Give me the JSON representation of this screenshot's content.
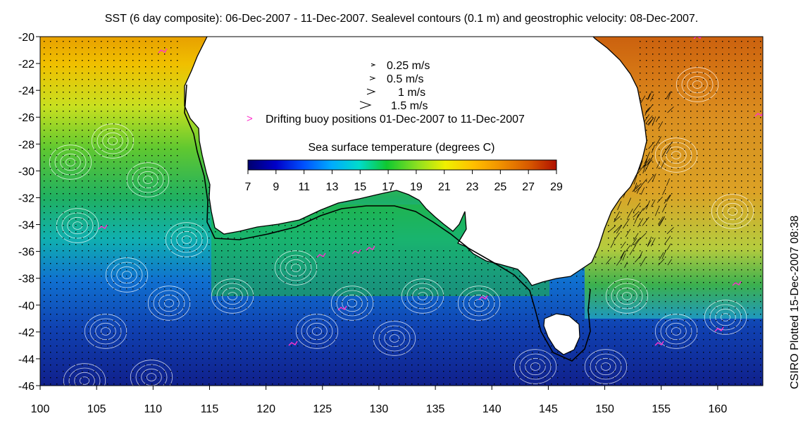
{
  "title": "SST (6 day composite): 06-Dec-2007 - 11-Dec-2007. Sealevel contours (0.1 m) and geostrophic velocity: 08-Dec-2007.",
  "side_label": "CSIRO Plotted 15-Dec-2007 08:38",
  "axes": {
    "x_ticks": [
      "100",
      "105",
      "110",
      "115",
      "120",
      "125",
      "130",
      "135",
      "140",
      "145",
      "150",
      "155",
      "160"
    ],
    "y_ticks": [
      "-20",
      "-22",
      "-24",
      "-26",
      "-28",
      "-30",
      "-32",
      "-34",
      "-36",
      "-38",
      "-40",
      "-42",
      "-44",
      "-46"
    ]
  },
  "legend": {
    "arrows": [
      {
        "label": "0.25 m/s",
        "speed": 0.25
      },
      {
        "label": "0.5 m/s",
        "speed": 0.5
      },
      {
        "label": "1 m/s",
        "speed": 1
      },
      {
        "label": "1.5 m/s",
        "speed": 1.5
      }
    ],
    "buoy_label": "Drifting buoy positions 01-Dec-2007 to 11-Dec-2007",
    "buoy_color": "#ff33cc",
    "colorbar_title": "Sea surface temperature (degrees C)",
    "colorbar_ticks": [
      "7",
      "9",
      "11",
      "13",
      "15",
      "17",
      "19",
      "21",
      "23",
      "25",
      "27",
      "29"
    ]
  },
  "colors": {
    "land": "#ffffff",
    "coast": "#000000",
    "contours": "#ffffff",
    "vectors": "#000000"
  }
}
